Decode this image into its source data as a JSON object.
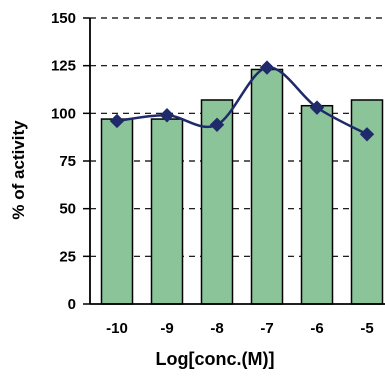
{
  "chart_data": {
    "type": "bar",
    "categories": [
      "-10",
      "-9",
      "-8",
      "-7",
      "-6",
      "-5"
    ],
    "series": [
      {
        "kind": "bar",
        "values": [
          97,
          97,
          107,
          123,
          104,
          107
        ],
        "color": "#8cc49a"
      },
      {
        "kind": "line",
        "values": [
          96,
          99,
          94,
          124,
          103,
          89
        ],
        "color": "#1f2a6b",
        "marker": "diamond"
      }
    ],
    "title": "",
    "xlabel": "Log[conc.(M)]",
    "ylabel": "% of activity",
    "ylim": [
      0,
      150
    ],
    "yticks": [
      "0",
      "25",
      "50",
      "75",
      "100",
      "125",
      "150"
    ],
    "grid": "horizontal-dashed",
    "colors": {
      "bar_fill": "#8cc49a",
      "bar_stroke": "#000000",
      "line": "#1f2a6b",
      "grid": "#000000",
      "text": "#000000"
    }
  }
}
